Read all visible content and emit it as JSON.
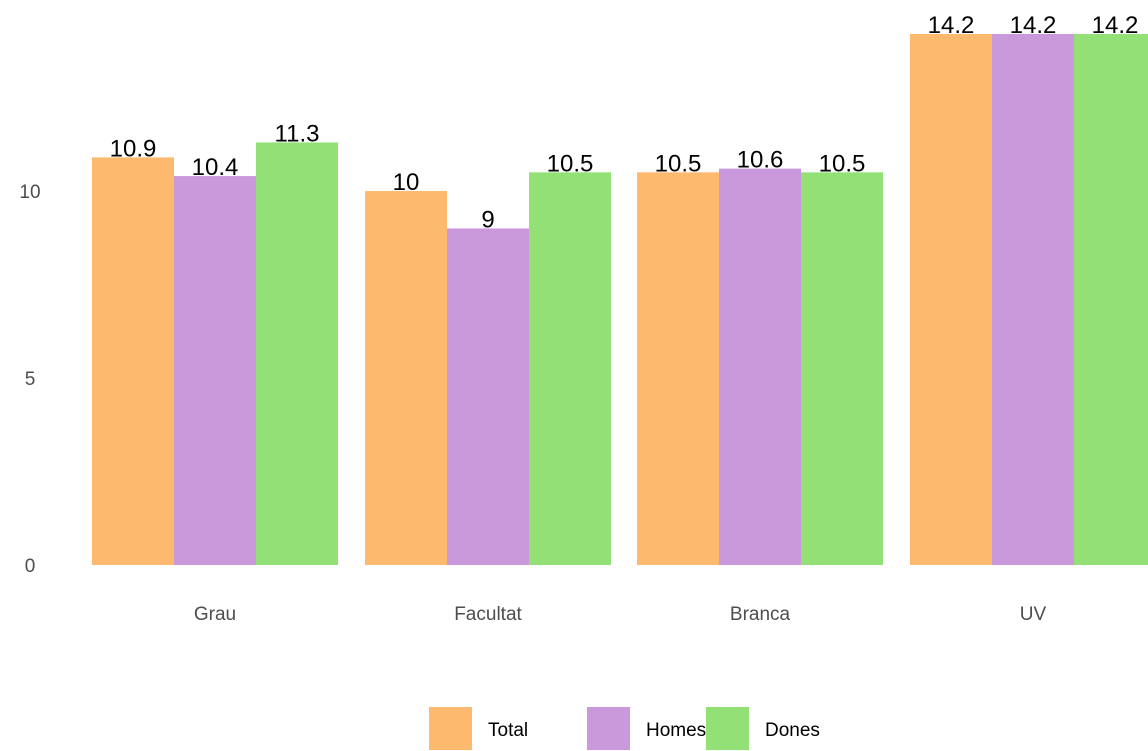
{
  "chart_data": {
    "type": "bar",
    "categories": [
      "Grau",
      "Facultat",
      "Branca",
      "UV"
    ],
    "series": [
      {
        "name": "Total",
        "color": "#FDB96E",
        "values": [
          10.9,
          10,
          10.5,
          14.2
        ]
      },
      {
        "name": "Homes",
        "color": "#C999DC",
        "values": [
          10.4,
          9,
          10.6,
          14.2
        ]
      },
      {
        "name": "Dones",
        "color": "#93E077",
        "values": [
          11.3,
          10.5,
          10.5,
          14.2
        ]
      }
    ],
    "data_labels": [
      [
        "10.9",
        "10",
        "10.5",
        "14.2"
      ],
      [
        "10.4",
        "9",
        "10.6",
        "14.2"
      ],
      [
        "11.3",
        "10.5",
        "10.5",
        "14.2"
      ]
    ],
    "y_ticks": [
      0,
      5,
      10
    ],
    "ylim": [
      0,
      14.2
    ],
    "grid": false,
    "legend": "bottom"
  }
}
